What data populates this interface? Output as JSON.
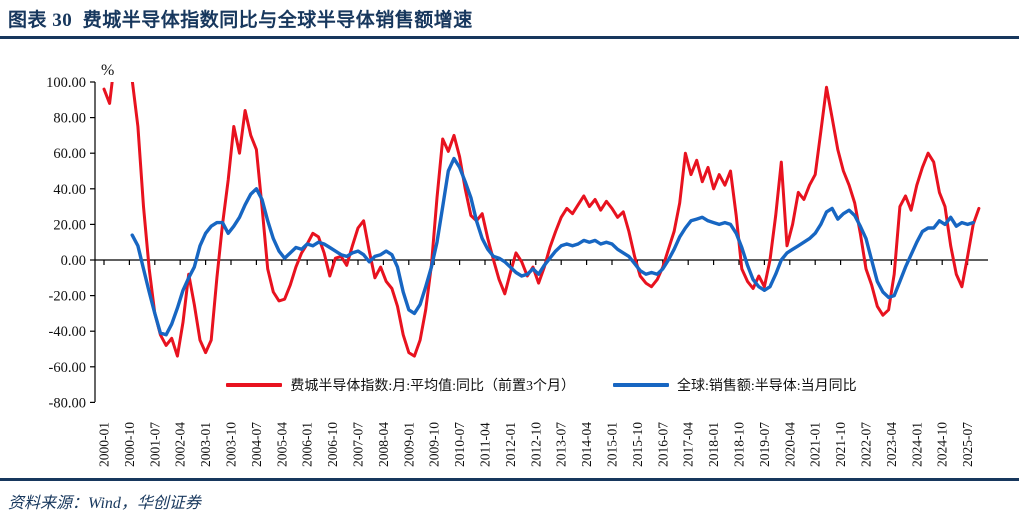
{
  "header": {
    "title": "图表 30  费城半导体指数同比与全球半导体销售额增速"
  },
  "footer": {
    "source": "资料来源：Wind，华创证券"
  },
  "colors": {
    "accent_navy": "#17375d",
    "red": "#e8121f",
    "blue": "#1766c2",
    "axis": "#000000"
  },
  "chart_data": {
    "type": "line",
    "title": "费城半导体指数同比与全球半导体销售额增速",
    "unit_label": "%",
    "grid": false,
    "legend_position": "bottom-center",
    "y_axis": {
      "min": -80,
      "max": 100,
      "tick_step": 20,
      "tick_labels": [
        "100.00",
        "80.00",
        "60.00",
        "40.00",
        "20.00",
        "0.00",
        "-20.00",
        "-40.00",
        "-60.00",
        "-80.00"
      ]
    },
    "x_axis": {
      "tick_interval_months": 9,
      "tick_labels": [
        "2000-01",
        "2000-10",
        "2001-07",
        "2002-04",
        "2003-01",
        "2003-10",
        "2004-07",
        "2005-04",
        "2006-01",
        "2006-10",
        "2007-07",
        "2008-04",
        "2009-01",
        "2009-10",
        "2010-07",
        "2011-04",
        "2012-01",
        "2012-10",
        "2013-07",
        "2014-04",
        "2015-01",
        "2015-10",
        "2016-07",
        "2017-04",
        "2018-01",
        "2018-10",
        "2019-07",
        "2020-04",
        "2021-01",
        "2021-10",
        "2022-07",
        "2023-04",
        "2024-01",
        "2024-10",
        "2025-07"
      ]
    },
    "series": [
      {
        "name": "费城半导体指数:月:平均值:同比（前置3个月）",
        "color": "#e8121f",
        "start": "2000-01",
        "step_months": 2,
        "values": [
          96,
          88,
          115,
          118,
          112,
          101,
          75,
          30,
          -5,
          -30,
          -42,
          -48,
          -44,
          -54,
          -35,
          -8,
          -25,
          -45,
          -52,
          -45,
          -10,
          20,
          45,
          75,
          60,
          84,
          70,
          62,
          30,
          -5,
          -18,
          -23,
          -22,
          -14,
          -4,
          4,
          9,
          15,
          13,
          4,
          -9,
          1,
          2,
          -3,
          8,
          18,
          22,
          5,
          -10,
          -4,
          -12,
          -16,
          -26,
          -42,
          -52,
          -54,
          -45,
          -28,
          -3,
          35,
          68,
          61,
          70,
          58,
          40,
          25,
          22,
          26,
          12,
          0,
          -11,
          -19,
          -7,
          4,
          -1,
          -9,
          -4,
          -13,
          -4,
          7,
          16,
          24,
          29,
          26,
          31,
          36,
          30,
          34,
          28,
          33,
          29,
          24,
          27,
          16,
          2,
          -9,
          -13,
          -15,
          -11,
          -4,
          6,
          16,
          32,
          60,
          48,
          56,
          44,
          52,
          40,
          48,
          42,
          50,
          25,
          -5,
          -12,
          -16,
          -9,
          -15,
          0,
          25,
          55,
          8,
          20,
          38,
          34,
          42,
          48,
          72,
          97,
          80,
          62,
          50,
          42,
          32,
          15,
          -5,
          -14,
          -26,
          -31,
          -28,
          -8,
          30,
          36,
          28,
          42,
          52,
          60,
          55,
          38,
          30,
          8,
          -8,
          -15,
          2,
          20,
          29
        ]
      },
      {
        "name": "全球:销售额:半导体:当月同比",
        "color": "#1766c2",
        "start": "2000-01",
        "step_months": 2,
        "values": [
          null,
          null,
          null,
          null,
          null,
          14,
          8,
          -5,
          -18,
          -30,
          -41,
          -42,
          -36,
          -27,
          -17,
          -10,
          -4,
          8,
          15,
          19,
          21,
          21,
          15,
          19,
          24,
          31,
          37,
          40,
          34,
          22,
          12,
          5,
          1,
          4,
          7,
          6,
          9,
          8,
          10,
          9,
          7,
          5,
          3,
          2,
          4,
          5,
          3,
          -1,
          2,
          3,
          5,
          3,
          -4,
          -18,
          -28,
          -30,
          -25,
          -15,
          -4,
          10,
          30,
          50,
          57,
          52,
          44,
          35,
          22,
          12,
          6,
          2,
          1,
          -1,
          -4,
          -7,
          -9,
          -8,
          -5,
          -8,
          -3,
          1,
          5,
          8,
          9,
          8,
          9,
          11,
          10,
          11,
          9,
          10,
          9,
          6,
          4,
          2,
          -2,
          -6,
          -8,
          -7,
          -8,
          -5,
          0,
          6,
          13,
          18,
          22,
          23,
          24,
          22,
          21,
          20,
          21,
          20,
          15,
          7,
          -3,
          -11,
          -15,
          -17,
          -15,
          -8,
          0,
          4,
          6,
          8,
          10,
          12,
          15,
          20,
          27,
          29,
          23,
          26,
          28,
          25,
          19,
          12,
          0,
          -12,
          -18,
          -21,
          -20,
          -12,
          -4,
          3,
          10,
          16,
          18,
          18,
          22,
          20,
          24,
          19,
          21,
          20,
          21,
          null
        ]
      }
    ]
  }
}
